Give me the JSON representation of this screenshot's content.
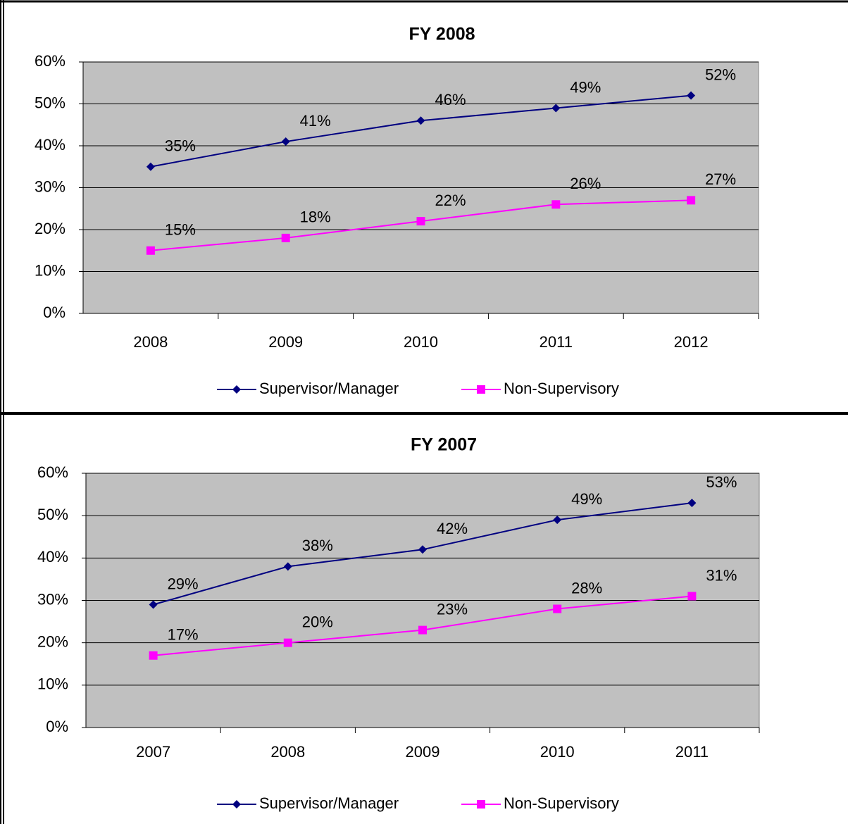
{
  "chart_data": [
    {
      "type": "line",
      "title": "FY 2008",
      "categories": [
        "2008",
        "2009",
        "2010",
        "2011",
        "2012"
      ],
      "series": [
        {
          "name": "Supervisor/Manager",
          "color": "#000080",
          "marker": "diamond",
          "values": [
            35,
            41,
            46,
            49,
            52
          ],
          "value_labels": [
            "35%",
            "41%",
            "46%",
            "49%",
            "52%"
          ]
        },
        {
          "name": "Non-Supervisory",
          "color": "#ff00ff",
          "marker": "square",
          "values": [
            15,
            18,
            22,
            26,
            27
          ],
          "value_labels": [
            "15%",
            "18%",
            "22%",
            "26%",
            "27%"
          ]
        }
      ],
      "ylim": [
        0,
        60
      ],
      "yticks": [
        {
          "value": 0,
          "label": "0%"
        },
        {
          "value": 10,
          "label": "10%"
        },
        {
          "value": 20,
          "label": "20%"
        },
        {
          "value": 30,
          "label": "30%"
        },
        {
          "value": 40,
          "label": "40%"
        },
        {
          "value": 50,
          "label": "50%"
        },
        {
          "value": 60,
          "label": "60%"
        }
      ],
      "grid": true,
      "plot_background": "#c0c0c0",
      "legend": "bottom"
    },
    {
      "type": "line",
      "title": "FY 2007",
      "categories": [
        "2007",
        "2008",
        "2009",
        "2010",
        "2011"
      ],
      "series": [
        {
          "name": "Supervisor/Manager",
          "color": "#000080",
          "marker": "diamond",
          "values": [
            29,
            38,
            42,
            49,
            53
          ],
          "value_labels": [
            "29%",
            "38%",
            "42%",
            "49%",
            "53%"
          ]
        },
        {
          "name": "Non-Supervisory",
          "color": "#ff00ff",
          "marker": "square",
          "values": [
            17,
            20,
            23,
            28,
            31
          ],
          "value_labels": [
            "17%",
            "20%",
            "23%",
            "28%",
            "31%"
          ]
        }
      ],
      "ylim": [
        0,
        60
      ],
      "yticks": [
        {
          "value": 0,
          "label": "0%"
        },
        {
          "value": 10,
          "label": "10%"
        },
        {
          "value": 20,
          "label": "20%"
        },
        {
          "value": 30,
          "label": "30%"
        },
        {
          "value": 40,
          "label": "40%"
        },
        {
          "value": 50,
          "label": "50%"
        },
        {
          "value": 60,
          "label": "60%"
        }
      ],
      "grid": true,
      "plot_background": "#c0c0c0",
      "legend": "bottom"
    }
  ]
}
